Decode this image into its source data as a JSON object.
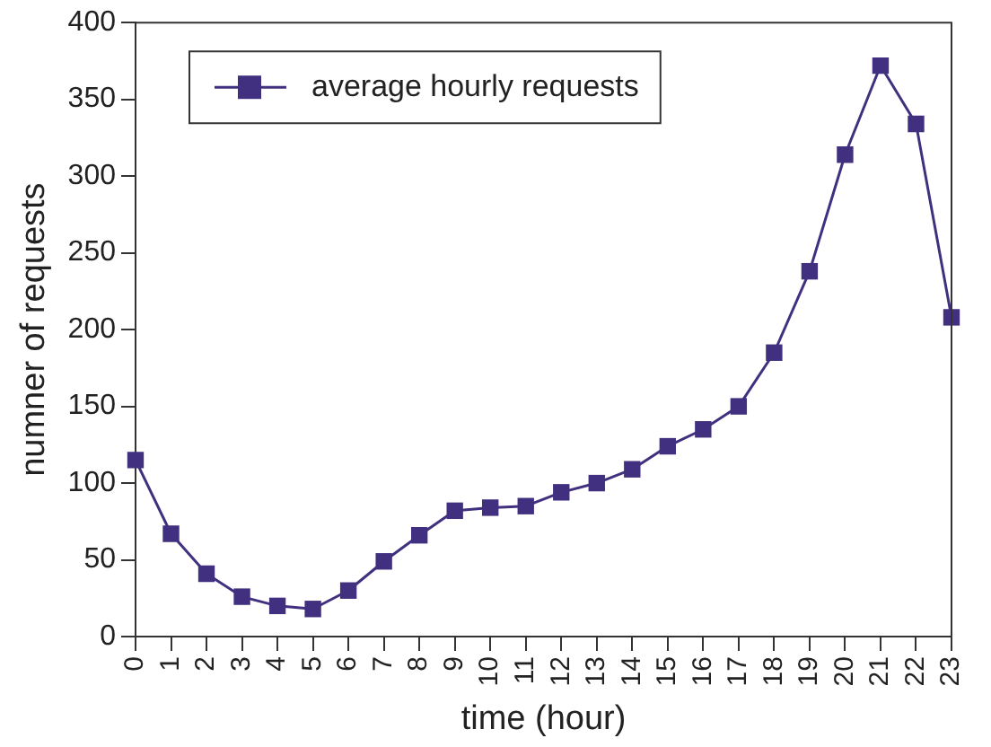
{
  "chart_data": {
    "type": "line",
    "xlabel": "time (hour)",
    "ylabel": "numner of requests",
    "categories": [
      "0",
      "1",
      "2",
      "3",
      "4",
      "5",
      "6",
      "7",
      "8",
      "9",
      "10",
      "11",
      "12",
      "13",
      "14",
      "15",
      "16",
      "17",
      "18",
      "19",
      "20",
      "21",
      "22",
      "23"
    ],
    "series": [
      {
        "name": "average hourly requests",
        "color": "#41307f",
        "values": [
          115,
          67,
          41,
          26,
          20,
          18,
          30,
          49,
          66,
          82,
          84,
          85,
          94,
          100,
          109,
          124,
          135,
          150,
          185,
          238,
          314,
          372,
          334,
          208
        ]
      }
    ],
    "ylim": [
      0,
      400
    ],
    "yticks": [
      0,
      50,
      100,
      150,
      200,
      250,
      300,
      350,
      400
    ],
    "grid": false,
    "legend": "top left",
    "marker": "square",
    "line_style": "solid"
  }
}
